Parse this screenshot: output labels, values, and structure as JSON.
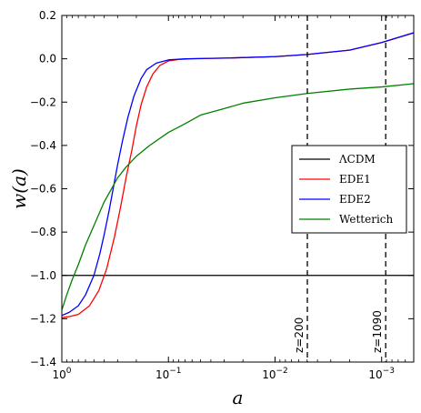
{
  "chart_data": {
    "type": "line",
    "xlabel": "a",
    "ylabel": "w(a)",
    "xscale": "log-decreasing",
    "xlim": [
      1,
      0.0005
    ],
    "ylim": [
      -1.4,
      0.2
    ],
    "grid": false,
    "legend_position": "right",
    "x_ticks": [
      {
        "value": 1,
        "base": "10",
        "exp": "0"
      },
      {
        "value": 0.1,
        "base": "10",
        "exp": "-1"
      },
      {
        "value": 0.01,
        "base": "10",
        "exp": "-2"
      },
      {
        "value": 0.001,
        "base": "10",
        "exp": "-3"
      }
    ],
    "y_ticks": [
      "0.2",
      "0.0",
      "-0.2",
      "-0.4",
      "-0.6",
      "-0.8",
      "-1.0",
      "-1.2",
      "-1.4"
    ],
    "series": [
      {
        "name": "ΛCDM",
        "color": "#000000",
        "points": [
          [
            1,
            -1.0
          ],
          [
            0.0005,
            -1.0
          ]
        ]
      },
      {
        "name": "EDE1",
        "color": "#ff0000",
        "points": [
          [
            1,
            -1.195
          ],
          [
            0.85,
            -1.19
          ],
          [
            0.7,
            -1.18
          ],
          [
            0.55,
            -1.14
          ],
          [
            0.45,
            -1.07
          ],
          [
            0.38,
            -0.97
          ],
          [
            0.32,
            -0.82
          ],
          [
            0.28,
            -0.68
          ],
          [
            0.25,
            -0.55
          ],
          [
            0.22,
            -0.42
          ],
          [
            0.2,
            -0.31
          ],
          [
            0.18,
            -0.21
          ],
          [
            0.16,
            -0.13
          ],
          [
            0.14,
            -0.07
          ],
          [
            0.12,
            -0.03
          ],
          [
            0.1,
            -0.01
          ],
          [
            0.08,
            -0.003
          ],
          [
            0.06,
            0.0
          ],
          [
            0.03,
            0.003
          ],
          [
            0.01,
            0.01
          ],
          [
            0.005,
            0.02
          ],
          [
            0.002,
            0.04
          ],
          [
            0.001,
            0.075
          ],
          [
            0.0005,
            0.12
          ]
        ]
      },
      {
        "name": "EDE2",
        "color": "#0000ff",
        "points": [
          [
            1,
            -1.185
          ],
          [
            0.85,
            -1.17
          ],
          [
            0.7,
            -1.14
          ],
          [
            0.6,
            -1.09
          ],
          [
            0.5,
            -1.0
          ],
          [
            0.44,
            -0.9
          ],
          [
            0.4,
            -0.81
          ],
          [
            0.36,
            -0.7
          ],
          [
            0.33,
            -0.6
          ],
          [
            0.3,
            -0.49
          ],
          [
            0.27,
            -0.38
          ],
          [
            0.24,
            -0.27
          ],
          [
            0.21,
            -0.17
          ],
          [
            0.18,
            -0.09
          ],
          [
            0.16,
            -0.05
          ],
          [
            0.13,
            -0.02
          ],
          [
            0.1,
            -0.005
          ],
          [
            0.07,
            0.0
          ],
          [
            0.03,
            0.003
          ],
          [
            0.01,
            0.01
          ],
          [
            0.005,
            0.02
          ],
          [
            0.002,
            0.04
          ],
          [
            0.001,
            0.075
          ],
          [
            0.0005,
            0.12
          ]
        ]
      },
      {
        "name": "Wetterich",
        "color": "#008000",
        "points": [
          [
            1,
            -1.16
          ],
          [
            0.9,
            -1.09
          ],
          [
            0.8,
            -1.02
          ],
          [
            0.7,
            -0.95
          ],
          [
            0.6,
            -0.86
          ],
          [
            0.5,
            -0.77
          ],
          [
            0.4,
            -0.66
          ],
          [
            0.3,
            -0.55
          ],
          [
            0.25,
            -0.5
          ],
          [
            0.2,
            -0.45
          ],
          [
            0.15,
            -0.4
          ],
          [
            0.1,
            -0.34
          ],
          [
            0.07,
            -0.3
          ],
          [
            0.05,
            -0.26
          ],
          [
            0.03,
            -0.23
          ],
          [
            0.02,
            -0.205
          ],
          [
            0.01,
            -0.18
          ],
          [
            0.005,
            -0.16
          ],
          [
            0.002,
            -0.14
          ],
          [
            0.001,
            -0.13
          ],
          [
            0.0005,
            -0.115
          ]
        ]
      }
    ],
    "annotations": [
      {
        "label": "z=200",
        "x": 0.004975
      },
      {
        "label": "z=1090",
        "x": 0.000916
      }
    ]
  }
}
